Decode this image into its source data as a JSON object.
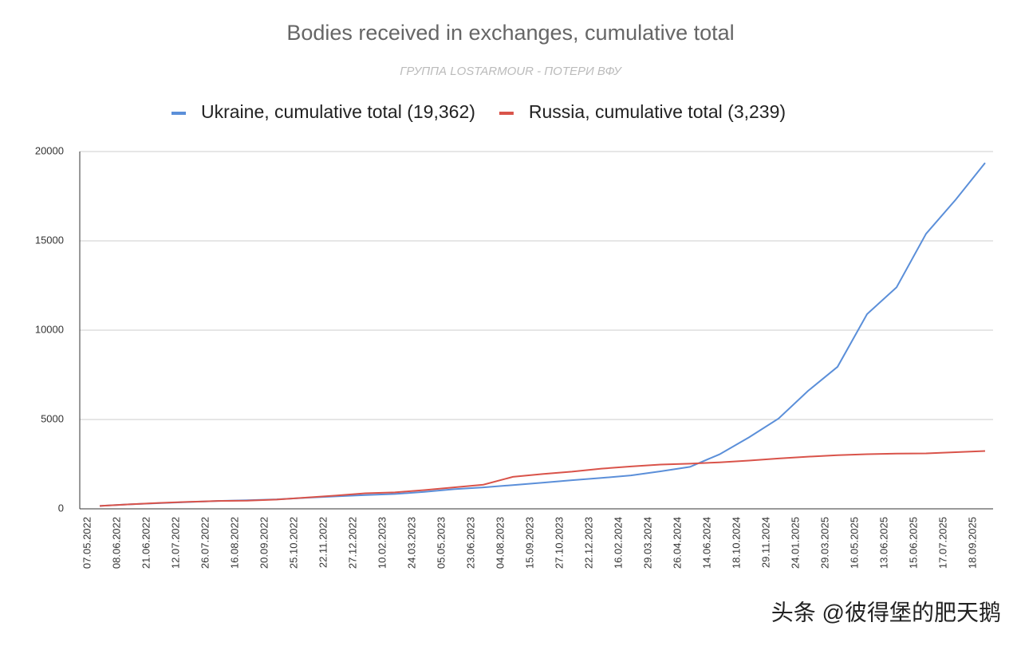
{
  "chart_data": {
    "type": "line",
    "title": "Bodies received in exchanges, cumulative total",
    "subtitle": "ГРУППА LOSTARMOUR - ПОТЕРИ ВФУ",
    "watermark": "头条 @彼得堡的肥天鹅",
    "categories": [
      "07.05.2022",
      "08.06.2022",
      "21.06.2022",
      "12.07.2022",
      "26.07.2022",
      "16.08.2022",
      "20.09.2022",
      "25.10.2022",
      "22.11.2022",
      "27.12.2022",
      "10.02.2023",
      "24.03.2023",
      "05.05.2023",
      "23.06.2023",
      "04.08.2023",
      "15.09.2023",
      "27.10.2023",
      "22.12.2023",
      "16.02.2024",
      "29.03.2024",
      "26.04.2024",
      "14.06.2024",
      "18.10.2024",
      "29.11.2024",
      "24.01.2025",
      "29.03.2025",
      "16.05.2025",
      "13.06.2025",
      "15.06.2025",
      "17.07.2025",
      "18.09.2025"
    ],
    "series": [
      {
        "name": "Ukraine, cumulative total (19,362)",
        "color": "#5b8fd9",
        "values": [
          160,
          250,
          320,
          380,
          440,
          480,
          530,
          620,
          700,
          770,
          830,
          950,
          1100,
          1200,
          1330,
          1460,
          1600,
          1730,
          1870,
          2100,
          2350,
          3050,
          4000,
          5050,
          6600,
          7950,
          10900,
          12400,
          15400,
          17300,
          19362
        ]
      },
      {
        "name": "Russia, cumulative total (3,239)",
        "color": "#d9534a",
        "values": [
          160,
          250,
          330,
          390,
          440,
          460,
          520,
          630,
          740,
          870,
          920,
          1050,
          1200,
          1350,
          1790,
          1950,
          2080,
          2250,
          2370,
          2480,
          2530,
          2600,
          2700,
          2820,
          2920,
          3000,
          3060,
          3090,
          3100,
          3170,
          3239
        ]
      }
    ],
    "ylim": [
      0,
      20000
    ],
    "yticks": [
      0,
      5000,
      10000,
      15000,
      20000
    ],
    "grid": true
  }
}
